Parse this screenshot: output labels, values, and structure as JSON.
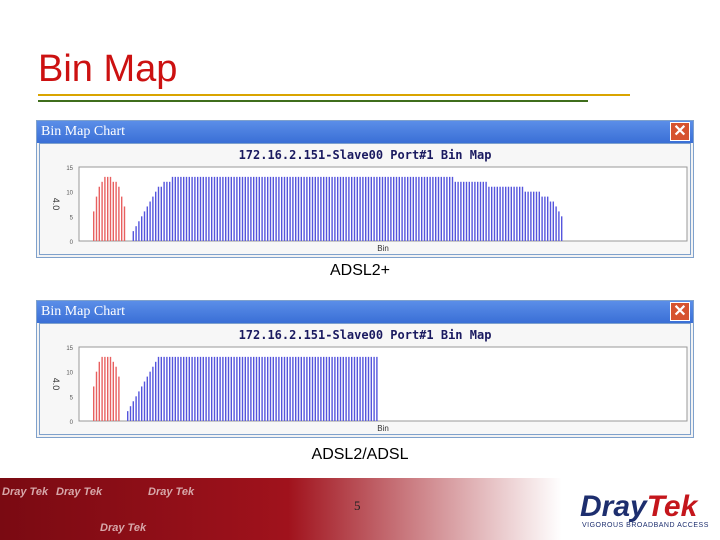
{
  "slide": {
    "title": "Bin Map",
    "page_number": "5"
  },
  "windows": [
    {
      "title": "Bin Map Chart",
      "close_label": "✕",
      "caption": "ADSL2+"
    },
    {
      "title": "Bin Map Chart",
      "close_label": "✕",
      "caption": "ADSL2/ADSL"
    }
  ],
  "footer": {
    "brand_left": "Dray",
    "brand_right": "Tek",
    "tagline": "VIGOROUS BROADBAND ACCESS",
    "watermarks": [
      "Dray Tek",
      "Dray Tek",
      "Dray Tek",
      "Dray Tek"
    ]
  },
  "colors": {
    "title": "#cc1111",
    "upstream_bars": "#e86060",
    "downstream_bars": "#5555dd",
    "footer_dark": "#7a0a12"
  },
  "chart_data": [
    {
      "type": "bar",
      "title": "172.16.2.151-Slave00 Port#1 Bin Map",
      "xlabel": "Bin",
      "ylabel": "4.0",
      "yticks": [
        "15",
        "10",
        "5",
        "0"
      ],
      "ylim": [
        0,
        15
      ],
      "series": [
        {
          "name": "upstream",
          "color": "#e86060",
          "values": [
            6,
            9,
            11,
            12,
            13,
            13,
            13,
            12,
            12,
            11,
            9,
            7
          ]
        },
        {
          "name": "downstream",
          "color": "#5555dd",
          "values": [
            2,
            3,
            4,
            5,
            6,
            7,
            8,
            9,
            10,
            11,
            11,
            12,
            12,
            12,
            13,
            13,
            13,
            13,
            13,
            13,
            13,
            13,
            13,
            13,
            13,
            13,
            13,
            13,
            13,
            13,
            13,
            13,
            13,
            13,
            13,
            13,
            13,
            13,
            13,
            13,
            13,
            13,
            13,
            13,
            13,
            13,
            13,
            13,
            13,
            13,
            13,
            13,
            13,
            13,
            13,
            13,
            13,
            13,
            13,
            13,
            13,
            13,
            13,
            13,
            13,
            13,
            13,
            13,
            13,
            13,
            13,
            13,
            13,
            13,
            13,
            13,
            13,
            13,
            13,
            13,
            13,
            13,
            13,
            13,
            13,
            13,
            13,
            13,
            13,
            13,
            13,
            13,
            13,
            13,
            13,
            13,
            13,
            13,
            13,
            13,
            13,
            13,
            13,
            13,
            13,
            13,
            13,
            13,
            13,
            13,
            13,
            13,
            13,
            13,
            13,
            12,
            12,
            12,
            12,
            12,
            12,
            12,
            12,
            12,
            12,
            12,
            12,
            11,
            11,
            11,
            11,
            11,
            11,
            11,
            11,
            11,
            11,
            11,
            11,
            11,
            10,
            10,
            10,
            10,
            10,
            10,
            9,
            9,
            9,
            8,
            8,
            7,
            6,
            5
          ]
        }
      ]
    },
    {
      "type": "bar",
      "title": "172.16.2.151-Slave00 Port#1 Bin Map",
      "xlabel": "Bin",
      "ylabel": "4.0",
      "yticks": [
        "15",
        "10",
        "5",
        "0"
      ],
      "ylim": [
        0,
        15
      ],
      "series": [
        {
          "name": "upstream",
          "color": "#e86060",
          "values": [
            7,
            10,
            12,
            13,
            13,
            13,
            13,
            12,
            11,
            9
          ]
        },
        {
          "name": "downstream",
          "color": "#5555dd",
          "values": [
            2,
            3,
            4,
            5,
            6,
            7,
            8,
            9,
            10,
            11,
            12,
            13,
            13,
            13,
            13,
            13,
            13,
            13,
            13,
            13,
            13,
            13,
            13,
            13,
            13,
            13,
            13,
            13,
            13,
            13,
            13,
            13,
            13,
            13,
            13,
            13,
            13,
            13,
            13,
            13,
            13,
            13,
            13,
            13,
            13,
            13,
            13,
            13,
            13,
            13,
            13,
            13,
            13,
            13,
            13,
            13,
            13,
            13,
            13,
            13,
            13,
            13,
            13,
            13,
            13,
            13,
            13,
            13,
            13,
            13,
            13,
            13,
            13,
            13,
            13,
            13,
            13,
            13,
            13,
            13,
            13,
            13,
            13,
            13,
            13,
            13,
            13,
            13,
            13,
            13
          ]
        }
      ]
    }
  ]
}
